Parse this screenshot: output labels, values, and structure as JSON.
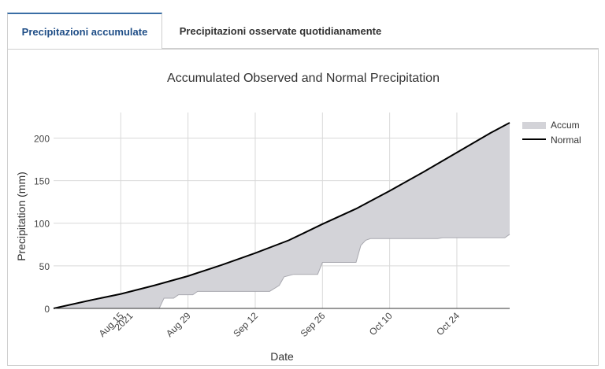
{
  "tabs": [
    {
      "label": "Precipitazioni accumulate",
      "active": true
    },
    {
      "label": "Precipitazioni osservate quotidianamente",
      "active": false
    }
  ],
  "colors": {
    "accum_fill": "#d3d3d8",
    "accum_stroke": "#a9a9b0",
    "normal_line": "#000000",
    "tab_active": "#1f4e87"
  },
  "chart_data": {
    "type": "area",
    "title": "Accumulated Observed and Normal Precipitation",
    "xlabel": "Date",
    "ylabel": "Precipitation (mm)",
    "ylim": [
      0,
      230
    ],
    "yticks": [
      0,
      50,
      100,
      150,
      200
    ],
    "xlim": [
      "2021-08-01",
      "2021-11-04"
    ],
    "xticks": [
      {
        "date": "2021-08-15",
        "label": "Aug 15",
        "sublabel": "2021"
      },
      {
        "date": "2021-08-29",
        "label": "Aug 29",
        "sublabel": ""
      },
      {
        "date": "2021-09-12",
        "label": "Sep 12",
        "sublabel": ""
      },
      {
        "date": "2021-09-26",
        "label": "Sep 26",
        "sublabel": ""
      },
      {
        "date": "2021-10-10",
        "label": "Oct 10",
        "sublabel": ""
      },
      {
        "date": "2021-10-24",
        "label": "Oct 24",
        "sublabel": ""
      }
    ],
    "grid": true,
    "legend_position": "right",
    "series": [
      {
        "name": "Accum",
        "kind": "area",
        "points": [
          [
            "2021-08-01",
            0
          ],
          [
            "2021-08-23",
            0
          ],
          [
            "2021-08-24",
            12
          ],
          [
            "2021-08-26",
            12
          ],
          [
            "2021-08-27",
            16
          ],
          [
            "2021-08-30",
            16
          ],
          [
            "2021-08-31",
            20
          ],
          [
            "2021-09-15",
            20
          ],
          [
            "2021-09-17",
            27
          ],
          [
            "2021-09-18",
            37
          ],
          [
            "2021-09-20",
            40
          ],
          [
            "2021-09-25",
            40
          ],
          [
            "2021-09-26",
            54
          ],
          [
            "2021-10-03",
            54
          ],
          [
            "2021-10-04",
            74
          ],
          [
            "2021-10-05",
            80
          ],
          [
            "2021-10-06",
            82
          ],
          [
            "2021-10-20",
            82
          ],
          [
            "2021-10-21",
            83
          ],
          [
            "2021-11-03",
            83
          ],
          [
            "2021-11-04",
            87
          ]
        ]
      },
      {
        "name": "Normal",
        "kind": "line",
        "points": [
          [
            "2021-08-01",
            0
          ],
          [
            "2021-08-09",
            10
          ],
          [
            "2021-08-15",
            17
          ],
          [
            "2021-08-22",
            27
          ],
          [
            "2021-08-29",
            38
          ],
          [
            "2021-09-05",
            51
          ],
          [
            "2021-09-12",
            65
          ],
          [
            "2021-09-19",
            80
          ],
          [
            "2021-09-26",
            99
          ],
          [
            "2021-10-03",
            117
          ],
          [
            "2021-10-10",
            138
          ],
          [
            "2021-10-17",
            160
          ],
          [
            "2021-10-24",
            183
          ],
          [
            "2021-10-31",
            206
          ],
          [
            "2021-11-04",
            218
          ]
        ]
      }
    ]
  }
}
